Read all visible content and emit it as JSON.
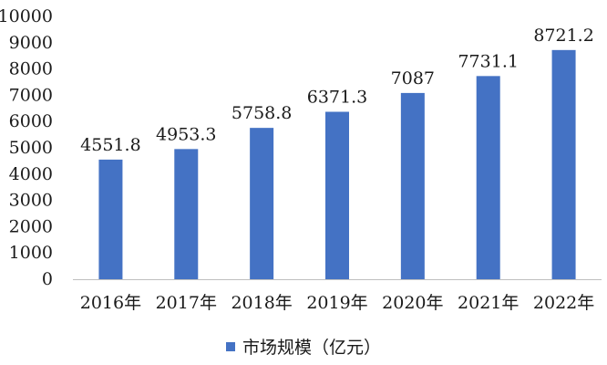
{
  "chart_data": {
    "type": "bar",
    "title": "",
    "xlabel": "",
    "ylabel": "",
    "categories": [
      "2016年",
      "2017年",
      "2018年",
      "2019年",
      "2020年",
      "2021年",
      "2022年"
    ],
    "series": [
      {
        "name": "市场规模（亿元）",
        "values": [
          4551.8,
          4953.3,
          5758.8,
          6371.3,
          7087,
          7731.1,
          8721.2
        ],
        "labels": [
          "4551.8",
          "4953.3",
          "5758.8",
          "6371.3",
          "7087",
          "7731.1",
          "8721.2"
        ],
        "color": "#4472C4"
      }
    ],
    "ylim": [
      0,
      10000
    ],
    "yticks": [
      0,
      1000,
      2000,
      3000,
      4000,
      5000,
      6000,
      7000,
      8000,
      9000,
      10000
    ],
    "grid": false,
    "legend_position": "bottom"
  }
}
